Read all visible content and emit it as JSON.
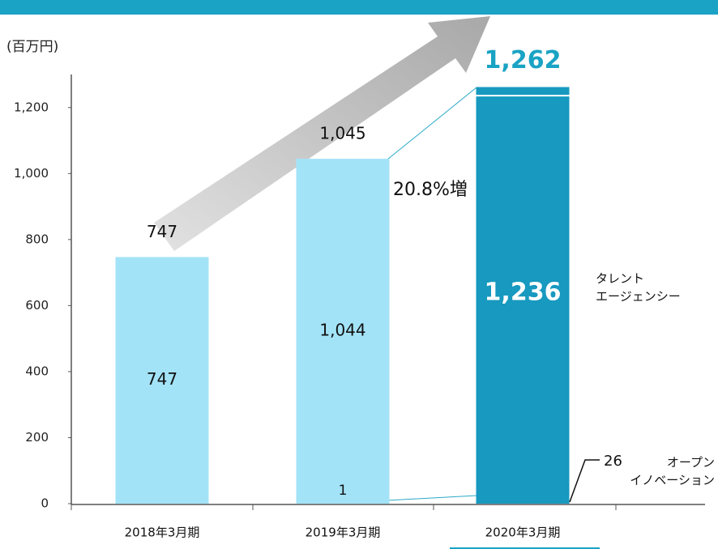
{
  "chart_data": {
    "type": "stacked_bar",
    "unit_label": "(百万円)",
    "categories": [
      "2018年3月期",
      "2019年3月期",
      "2020年3月期"
    ],
    "series": [
      {
        "name": "タレント\nエージェンシー",
        "colors": [
          "#a3e3f7",
          "#a3e3f7",
          "#1799c0"
        ],
        "values": [
          747,
          1044,
          1236
        ],
        "value_labels": [
          "747",
          "1,044",
          "1,236"
        ]
      },
      {
        "name": "オープン\nイノベーション",
        "colors": [
          "#a3e3f7",
          "#a3e3f7",
          "#1799c0"
        ],
        "values": [
          null,
          1,
          26
        ],
        "value_labels": [
          null,
          "1",
          "26"
        ]
      }
    ],
    "total_labels": [
      "747",
      "1,045",
      "1,262"
    ],
    "annotation": "20.8%増",
    "ylim": [
      0,
      1300
    ],
    "yticks": [
      0,
      200,
      400,
      600,
      800,
      {
        "value": 1000,
        "label": "1,000"
      },
      {
        "value": 1200,
        "label": "1,200"
      }
    ]
  }
}
